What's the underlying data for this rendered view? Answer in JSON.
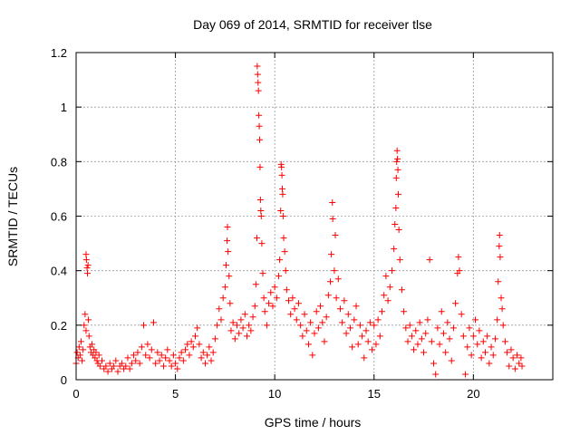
{
  "chart_data": {
    "type": "scatter",
    "title": "Day 069 of 2014, SRMTID for receiver tlse",
    "xlabel": "GPS time / hours",
    "ylabel": "SRMTID / TECUs",
    "xlim": [
      0,
      24
    ],
    "ylim": [
      0,
      1.2
    ],
    "xticks": [
      0,
      5,
      10,
      15,
      20
    ],
    "xtick_labels": [
      "0",
      "5",
      "10",
      "15",
      "20"
    ],
    "yticks": [
      0,
      0.2,
      0.4,
      0.6,
      0.8,
      1.0,
      1.2
    ],
    "ytick_labels": [
      "0",
      "0.2",
      "0.4",
      "0.6",
      "0.8",
      "1",
      "1.2"
    ],
    "grid": true,
    "marker": "+",
    "color": "#ff0000",
    "series": [
      {
        "name": "SRMTID",
        "points": [
          [
            0.0,
            0.06
          ],
          [
            0.05,
            0.1
          ],
          [
            0.1,
            0.08
          ],
          [
            0.15,
            0.12
          ],
          [
            0.2,
            0.09
          ],
          [
            0.25,
            0.14
          ],
          [
            0.3,
            0.07
          ],
          [
            0.35,
            0.11
          ],
          [
            0.4,
            0.2
          ],
          [
            0.45,
            0.24
          ],
          [
            0.5,
            0.18
          ],
          [
            0.5,
            0.46
          ],
          [
            0.52,
            0.44
          ],
          [
            0.55,
            0.41
          ],
          [
            0.57,
            0.39
          ],
          [
            0.6,
            0.42
          ],
          [
            0.62,
            0.22
          ],
          [
            0.65,
            0.16
          ],
          [
            0.7,
            0.12
          ],
          [
            0.75,
            0.1
          ],
          [
            0.8,
            0.13
          ],
          [
            0.85,
            0.09
          ],
          [
            0.9,
            0.11
          ],
          [
            0.95,
            0.08
          ],
          [
            1.0,
            0.1
          ],
          [
            1.05,
            0.07
          ],
          [
            1.1,
            0.06
          ],
          [
            1.15,
            0.09
          ],
          [
            1.2,
            0.05
          ],
          [
            1.3,
            0.07
          ],
          [
            1.4,
            0.04
          ],
          [
            1.5,
            0.05
          ],
          [
            1.6,
            0.03
          ],
          [
            1.7,
            0.06
          ],
          [
            1.8,
            0.04
          ],
          [
            1.9,
            0.05
          ],
          [
            2.0,
            0.07
          ],
          [
            2.1,
            0.03
          ],
          [
            2.2,
            0.05
          ],
          [
            2.3,
            0.06
          ],
          [
            2.4,
            0.04
          ],
          [
            2.5,
            0.05
          ],
          [
            2.6,
            0.08
          ],
          [
            2.7,
            0.04
          ],
          [
            2.8,
            0.06
          ],
          [
            2.9,
            0.09
          ],
          [
            3.0,
            0.07
          ],
          [
            3.1,
            0.1
          ],
          [
            3.2,
            0.06
          ],
          [
            3.3,
            0.12
          ],
          [
            3.4,
            0.2
          ],
          [
            3.5,
            0.09
          ],
          [
            3.6,
            0.13
          ],
          [
            3.7,
            0.08
          ],
          [
            3.8,
            0.11
          ],
          [
            3.9,
            0.21
          ],
          [
            4.0,
            0.06
          ],
          [
            4.1,
            0.1
          ],
          [
            4.2,
            0.07
          ],
          [
            4.3,
            0.09
          ],
          [
            4.4,
            0.05
          ],
          [
            4.5,
            0.08
          ],
          [
            4.6,
            0.11
          ],
          [
            4.7,
            0.07
          ],
          [
            4.8,
            0.05
          ],
          [
            4.9,
            0.09
          ],
          [
            5.0,
            0.06
          ],
          [
            5.1,
            0.04
          ],
          [
            5.2,
            0.08
          ],
          [
            5.3,
            0.1
          ],
          [
            5.4,
            0.07
          ],
          [
            5.5,
            0.11
          ],
          [
            5.6,
            0.13
          ],
          [
            5.7,
            0.09
          ],
          [
            5.8,
            0.14
          ],
          [
            5.9,
            0.12
          ],
          [
            6.0,
            0.16
          ],
          [
            6.1,
            0.19
          ],
          [
            6.2,
            0.13
          ],
          [
            6.3,
            0.08
          ],
          [
            6.4,
            0.1
          ],
          [
            6.5,
            0.06
          ],
          [
            6.6,
            0.09
          ],
          [
            6.7,
            0.12
          ],
          [
            6.8,
            0.07
          ],
          [
            6.9,
            0.1
          ],
          [
            7.0,
            0.15
          ],
          [
            7.1,
            0.2
          ],
          [
            7.2,
            0.26
          ],
          [
            7.3,
            0.22
          ],
          [
            7.4,
            0.3
          ],
          [
            7.5,
            0.34
          ],
          [
            7.55,
            0.42
          ],
          [
            7.6,
            0.51
          ],
          [
            7.62,
            0.56
          ],
          [
            7.65,
            0.47
          ],
          [
            7.7,
            0.38
          ],
          [
            7.75,
            0.28
          ],
          [
            7.8,
            0.18
          ],
          [
            7.9,
            0.21
          ],
          [
            8.0,
            0.15
          ],
          [
            8.1,
            0.2
          ],
          [
            8.2,
            0.17
          ],
          [
            8.3,
            0.22
          ],
          [
            8.4,
            0.19
          ],
          [
            8.5,
            0.24
          ],
          [
            8.6,
            0.16
          ],
          [
            8.7,
            0.2
          ],
          [
            8.8,
            0.18
          ],
          [
            8.9,
            0.23
          ],
          [
            9.0,
            0.27
          ],
          [
            9.05,
            0.35
          ],
          [
            9.1,
            0.52
          ],
          [
            9.12,
            1.15
          ],
          [
            9.14,
            1.12
          ],
          [
            9.16,
            1.09
          ],
          [
            9.18,
            1.06
          ],
          [
            9.2,
            0.97
          ],
          [
            9.22,
            0.93
          ],
          [
            9.24,
            0.88
          ],
          [
            9.26,
            0.78
          ],
          [
            9.28,
            0.66
          ],
          [
            9.3,
            0.62
          ],
          [
            9.32,
            0.6
          ],
          [
            9.35,
            0.5
          ],
          [
            9.4,
            0.39
          ],
          [
            9.45,
            0.3
          ],
          [
            9.5,
            0.25
          ],
          [
            9.6,
            0.2
          ],
          [
            9.7,
            0.28
          ],
          [
            9.8,
            0.32
          ],
          [
            9.9,
            0.27
          ],
          [
            10.0,
            0.34
          ],
          [
            10.1,
            0.3
          ],
          [
            10.2,
            0.38
          ],
          [
            10.25,
            0.44
          ],
          [
            10.3,
            0.62
          ],
          [
            10.32,
            0.79
          ],
          [
            10.34,
            0.78
          ],
          [
            10.36,
            0.75
          ],
          [
            10.38,
            0.7
          ],
          [
            10.4,
            0.68
          ],
          [
            10.42,
            0.6
          ],
          [
            10.45,
            0.52
          ],
          [
            10.5,
            0.47
          ],
          [
            10.55,
            0.4
          ],
          [
            10.6,
            0.33
          ],
          [
            10.7,
            0.29
          ],
          [
            10.8,
            0.24
          ],
          [
            10.9,
            0.3
          ],
          [
            11.0,
            0.26
          ],
          [
            11.1,
            0.22
          ],
          [
            11.2,
            0.28
          ],
          [
            11.3,
            0.2
          ],
          [
            11.4,
            0.16
          ],
          [
            11.5,
            0.24
          ],
          [
            11.6,
            0.18
          ],
          [
            11.7,
            0.13
          ],
          [
            11.8,
            0.21
          ],
          [
            11.9,
            0.09
          ],
          [
            12.0,
            0.17
          ],
          [
            12.1,
            0.25
          ],
          [
            12.2,
            0.19
          ],
          [
            12.3,
            0.27
          ],
          [
            12.4,
            0.21
          ],
          [
            12.5,
            0.14
          ],
          [
            12.6,
            0.23
          ],
          [
            12.7,
            0.31
          ],
          [
            12.8,
            0.36
          ],
          [
            12.85,
            0.46
          ],
          [
            12.9,
            0.65
          ],
          [
            12.92,
            0.59
          ],
          [
            13.0,
            0.4
          ],
          [
            13.05,
            0.53
          ],
          [
            13.1,
            0.3
          ],
          [
            13.2,
            0.37
          ],
          [
            13.3,
            0.26
          ],
          [
            13.4,
            0.21
          ],
          [
            13.5,
            0.29
          ],
          [
            13.6,
            0.17
          ],
          [
            13.7,
            0.24
          ],
          [
            13.8,
            0.19
          ],
          [
            13.9,
            0.12
          ],
          [
            14.0,
            0.22
          ],
          [
            14.1,
            0.27
          ],
          [
            14.2,
            0.13
          ],
          [
            14.3,
            0.2
          ],
          [
            14.4,
            0.16
          ],
          [
            14.5,
            0.08
          ],
          [
            14.6,
            0.18
          ],
          [
            14.7,
            0.14
          ],
          [
            14.8,
            0.21
          ],
          [
            14.9,
            0.11
          ],
          [
            15.0,
            0.2
          ],
          [
            15.1,
            0.13
          ],
          [
            15.2,
            0.22
          ],
          [
            15.3,
            0.16
          ],
          [
            15.4,
            0.25
          ],
          [
            15.5,
            0.31
          ],
          [
            15.6,
            0.38
          ],
          [
            15.7,
            0.29
          ],
          [
            15.8,
            0.34
          ],
          [
            15.9,
            0.4
          ],
          [
            16.0,
            0.48
          ],
          [
            16.05,
            0.57
          ],
          [
            16.1,
            0.63
          ],
          [
            16.12,
            0.74
          ],
          [
            16.14,
            0.8
          ],
          [
            16.16,
            0.84
          ],
          [
            16.18,
            0.81
          ],
          [
            16.2,
            0.77
          ],
          [
            16.22,
            0.68
          ],
          [
            16.25,
            0.55
          ],
          [
            16.3,
            0.44
          ],
          [
            16.4,
            0.33
          ],
          [
            16.5,
            0.25
          ],
          [
            16.6,
            0.19
          ],
          [
            16.7,
            0.14
          ],
          [
            16.8,
            0.2
          ],
          [
            16.9,
            0.16
          ],
          [
            17.0,
            0.11
          ],
          [
            17.1,
            0.18
          ],
          [
            17.2,
            0.13
          ],
          [
            17.3,
            0.21
          ],
          [
            17.4,
            0.15
          ],
          [
            17.5,
            0.1
          ],
          [
            17.6,
            0.17
          ],
          [
            17.7,
            0.22
          ],
          [
            17.8,
            0.44
          ],
          [
            17.9,
            0.14
          ],
          [
            18.0,
            0.06
          ],
          [
            18.1,
            0.02
          ],
          [
            18.2,
            0.19
          ],
          [
            18.3,
            0.13
          ],
          [
            18.4,
            0.25
          ],
          [
            18.5,
            0.17
          ],
          [
            18.6,
            0.1
          ],
          [
            18.7,
            0.21
          ],
          [
            18.8,
            0.15
          ],
          [
            18.9,
            0.07
          ],
          [
            19.0,
            0.19
          ],
          [
            19.1,
            0.28
          ],
          [
            19.2,
            0.39
          ],
          [
            19.25,
            0.45
          ],
          [
            19.3,
            0.4
          ],
          [
            19.4,
            0.24
          ],
          [
            19.5,
            0.16
          ],
          [
            19.6,
            0.02
          ],
          [
            19.7,
            0.12
          ],
          [
            19.8,
            0.19
          ],
          [
            19.9,
            0.09
          ],
          [
            20.0,
            0.16
          ],
          [
            20.1,
            0.22
          ],
          [
            20.2,
            0.13
          ],
          [
            20.3,
            0.18
          ],
          [
            20.4,
            0.08
          ],
          [
            20.5,
            0.14
          ],
          [
            20.6,
            0.1
          ],
          [
            20.7,
            0.16
          ],
          [
            20.8,
            0.06
          ],
          [
            20.9,
            0.12
          ],
          [
            21.0,
            0.09
          ],
          [
            21.1,
            0.15
          ],
          [
            21.2,
            0.22
          ],
          [
            21.25,
            0.36
          ],
          [
            21.3,
            0.49
          ],
          [
            21.32,
            0.53
          ],
          [
            21.35,
            0.45
          ],
          [
            21.4,
            0.3
          ],
          [
            21.45,
            0.26
          ],
          [
            21.5,
            0.2
          ],
          [
            21.6,
            0.14
          ],
          [
            21.7,
            0.1
          ],
          [
            21.8,
            0.05
          ],
          [
            21.9,
            0.11
          ],
          [
            22.0,
            0.08
          ],
          [
            22.1,
            0.04
          ],
          [
            22.2,
            0.09
          ],
          [
            22.3,
            0.06
          ],
          [
            22.4,
            0.08
          ],
          [
            22.45,
            0.05
          ]
        ]
      }
    ]
  }
}
